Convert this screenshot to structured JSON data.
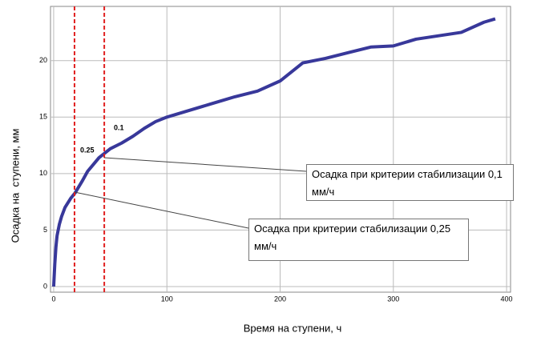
{
  "chart_data": {
    "type": "line",
    "x_label": "Время на ступени, ч",
    "y_label": "Осадка на  ступени, мм",
    "x": [
      0,
      1,
      2,
      3,
      5,
      7,
      10,
      15,
      19,
      25,
      30,
      35,
      40,
      45,
      50,
      60,
      70,
      80,
      90,
      100,
      120,
      140,
      160,
      180,
      200,
      220,
      240,
      260,
      280,
      300,
      320,
      340,
      360,
      380,
      390
    ],
    "series": [
      {
        "color": "#38389a",
        "values": [
          0,
          2,
          3.5,
          4.5,
          5.5,
          6.2,
          7,
          7.8,
          8.3,
          9.3,
          10.2,
          10.8,
          11.4,
          11.8,
          12.2,
          12.7,
          13.3,
          14,
          14.6,
          15,
          15.6,
          16.2,
          16.8,
          17.3,
          18.2,
          19.8,
          20.2,
          20.7,
          21.2,
          21.3,
          21.9,
          22.2,
          22.5,
          23.4,
          23.7
        ]
      }
    ],
    "vlines": [
      18.4,
      44.7
    ],
    "vline_color": "#e02020",
    "annotations": [
      "0.25",
      "0.1",
      "Осадка при критерии стабилизации 0,1 мм/ч",
      "Осадка при критерии стабилизации 0,25 мм/ч"
    ],
    "xlim": [
      -2.8,
      403.5
    ],
    "ylim": [
      -0.5,
      24.8
    ],
    "xticks": [
      0,
      100,
      200,
      300,
      400
    ],
    "yticks": [
      0,
      5,
      10,
      15,
      20
    ],
    "grid": true
  }
}
